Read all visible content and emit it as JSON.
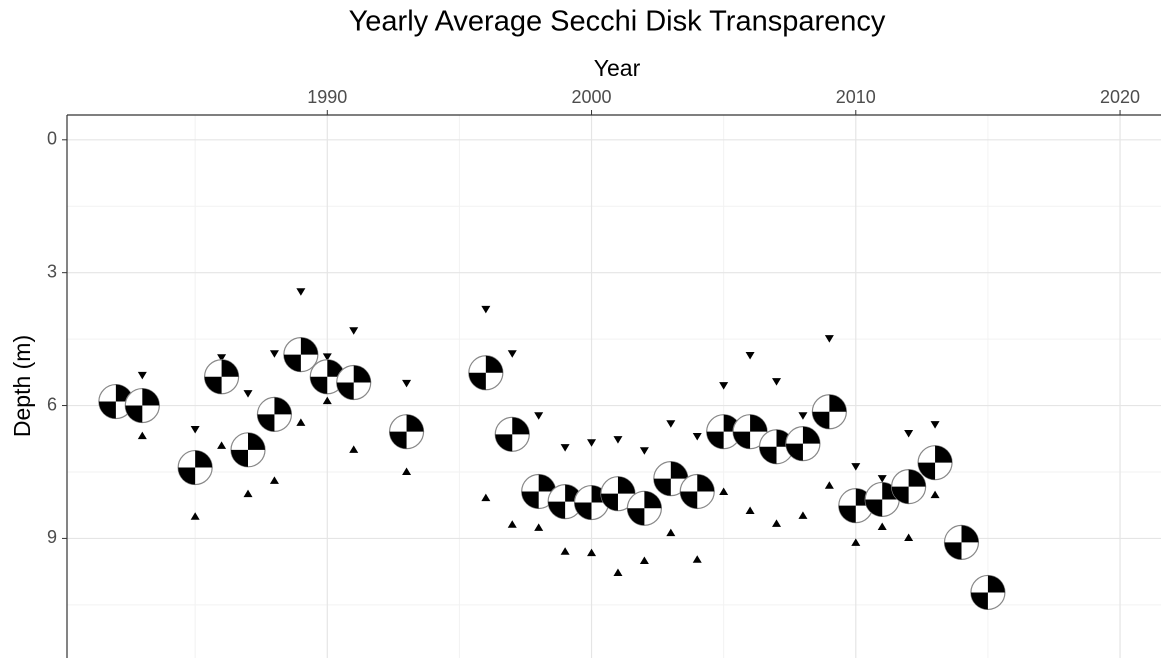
{
  "chart_data": {
    "type": "scatter",
    "title": "Yearly Average Secchi Disk Transparency",
    "x_label": "Year",
    "y_label": "Depth (m)",
    "x": [
      1982,
      1983,
      1985,
      1986,
      1987,
      1988,
      1989,
      1990,
      1991,
      1993,
      1996,
      1997,
      1998,
      1999,
      2000,
      2001,
      2002,
      2003,
      2004,
      2005,
      2006,
      2007,
      2008,
      2009,
      2010,
      2011,
      2012,
      2013,
      2014,
      2015
    ],
    "series": [
      {
        "marker": "secchi",
        "color": "#000000",
        "values": [
          5.91,
          6.0,
          7.4,
          5.35,
          7.0,
          6.2,
          4.85,
          5.35,
          5.48,
          6.59,
          5.26,
          6.65,
          7.94,
          8.17,
          8.19,
          7.99,
          8.32,
          7.65,
          7.94,
          6.59,
          6.59,
          6.93,
          6.86,
          6.14,
          8.26,
          8.12,
          7.83,
          7.29,
          9.09,
          10.22
        ]
      },
      {
        "marker": "triangle-down",
        "color": "#000000",
        "values": [
          null,
          5.32,
          6.54,
          4.92,
          5.73,
          4.83,
          3.43,
          4.9,
          4.31,
          5.5,
          3.83,
          4.83,
          6.23,
          6.95,
          6.84,
          6.77,
          7.02,
          6.41,
          6.7,
          5.55,
          4.87,
          5.46,
          6.23,
          4.49,
          7.38,
          7.65,
          6.63,
          6.43,
          null,
          null
        ]
      },
      {
        "marker": "triangle-up",
        "color": "#000000",
        "values": [
          null,
          6.68,
          8.5,
          6.9,
          7.99,
          7.69,
          6.38,
          5.89,
          6.99,
          7.49,
          8.08,
          8.68,
          8.75,
          9.29,
          9.32,
          9.77,
          9.5,
          8.87,
          9.47,
          7.94,
          8.37,
          8.66,
          8.48,
          7.8,
          9.09,
          8.73,
          8.98,
          8.01,
          null,
          null
        ]
      }
    ],
    "xlim": [
      1980.15,
      2021.55
    ],
    "xticks": [
      1990,
      2000,
      2010,
      2020
    ],
    "minor_xticks": [
      1985,
      1995,
      2005,
      2015
    ],
    "ylim": [
      -0.56,
      11.7
    ],
    "yticks": [
      0,
      3,
      6,
      9
    ],
    "minor_yticks": [
      1.5,
      4.5,
      7.5,
      10.5
    ],
    "y_reversed": true,
    "x_axis_position": "top",
    "grid": true
  }
}
